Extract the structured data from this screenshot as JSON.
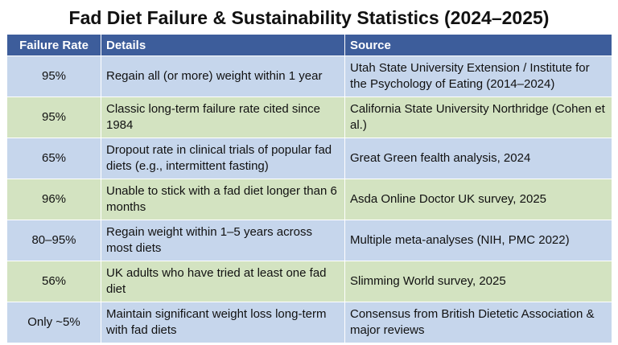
{
  "header": {
    "title": "Fad Diet Failure & Sustainability Statistics (2024–2025)"
  },
  "table": {
    "columns": [
      "Failure Rate",
      "Details",
      "Source"
    ],
    "rows": [
      [
        "95%",
        "Regain all (or more) weight within 1 year",
        "Utah State University Extension / Institute for the Psychology of Eating (2014–2024)"
      ],
      [
        "95%",
        "Classic long-term failure rate cited since 1984",
        "California State University Northridge (Cohen et al.)"
      ],
      [
        "65%",
        "Dropout rate in clinical trials of popular fad diets (e.g., intermittent fasting)",
        "Great Green fealth analysis, 2024"
      ],
      [
        "96%",
        "Unable to stick with a fad diet longer than 6 months",
        "Asda Online Doctor UK survey, 2025"
      ],
      [
        "80–95%",
        "Regain weight within 1–5 years across most diets",
        "Multiple meta-analyses (NIH, PMC 2022)"
      ],
      [
        "56%",
        "UK adults who have tried at least one fad diet",
        "Slimming World survey, 2025"
      ],
      [
        "Only ~5%",
        "Maintain significant weight loss long-term with fad diets",
        "Consensus from British Dietetic Association & major reviews"
      ]
    ]
  }
}
